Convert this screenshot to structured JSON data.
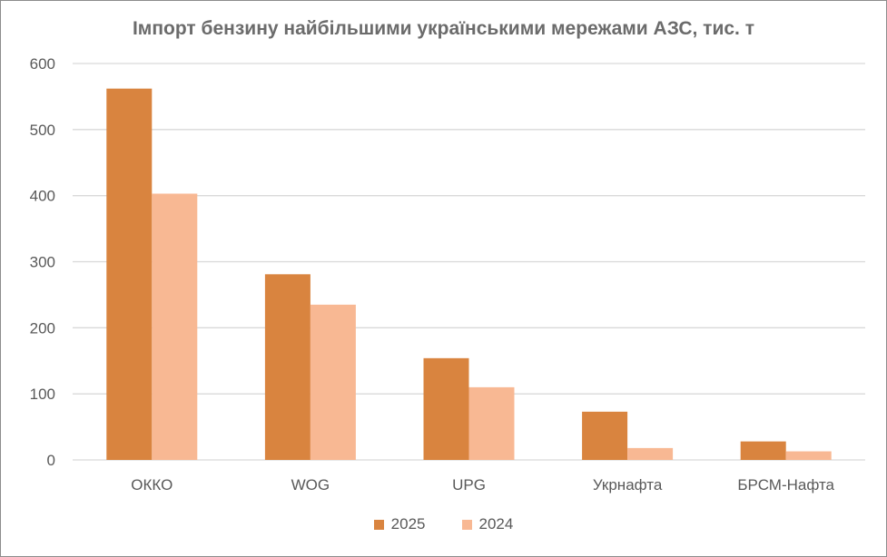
{
  "chart_data": {
    "type": "bar",
    "title": "Імпорт бензину найбільшими українськими мережами АЗС, тис. т",
    "categories": [
      "ОККО",
      "WOG",
      "UPG",
      "Укрнафта",
      "БРСМ-Нафта"
    ],
    "series": [
      {
        "name": "2025",
        "values": [
          562,
          281,
          154,
          73,
          28
        ],
        "color": "#D9843F"
      },
      {
        "name": "2024",
        "values": [
          403,
          235,
          110,
          18,
          13
        ],
        "color": "#F8B893"
      }
    ],
    "ylim": [
      0,
      600
    ],
    "yticks": [
      0,
      100,
      200,
      300,
      400,
      500,
      600
    ],
    "grid": true,
    "legend_position": "bottom"
  }
}
